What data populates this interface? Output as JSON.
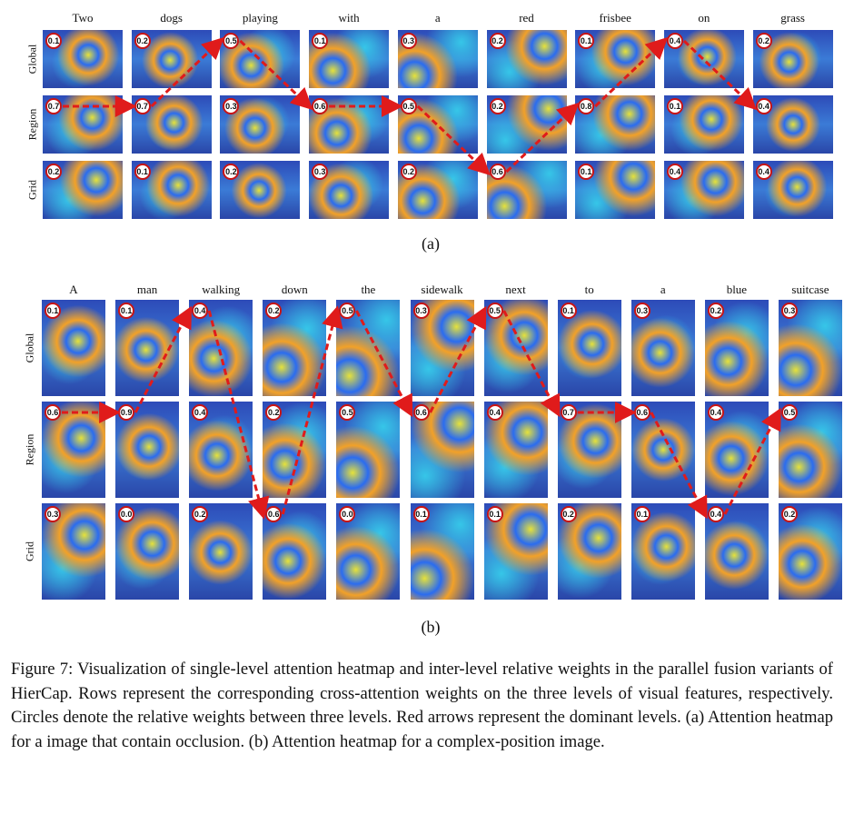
{
  "panel_a": {
    "label": "(a)",
    "words": [
      "Two",
      "dogs",
      "playing",
      "with",
      "a",
      "red",
      "frisbee",
      "on",
      "grass"
    ],
    "rows": [
      "Global",
      "Region",
      "Grid"
    ],
    "weights": [
      [
        "0.1",
        "0.2",
        "0.5",
        "0.1",
        "0.3",
        "0.2",
        "0.1",
        "0.4",
        "0.2"
      ],
      [
        "0.7",
        "0.7",
        "0.3",
        "0.6",
        "0.5",
        "0.2",
        "0.8",
        "0.1",
        "0.4"
      ],
      [
        "0.2",
        "0.1",
        "0.2",
        "0.3",
        "0.2",
        "0.6",
        "0.1",
        "0.4",
        "0.4"
      ]
    ],
    "dominant_path": [
      1,
      1,
      0,
      1,
      1,
      2,
      1,
      0,
      1
    ]
  },
  "panel_b": {
    "label": "(b)",
    "words": [
      "A",
      "man",
      "walking",
      "down",
      "the",
      "sidewalk",
      "next",
      "to",
      "a",
      "blue",
      "suitcase"
    ],
    "rows": [
      "Global",
      "Region",
      "Grid"
    ],
    "weights": [
      [
        "0.1",
        "0.1",
        "0.4",
        "0.2",
        "0.5",
        "0.3",
        "0.5",
        "0.1",
        "0.3",
        "0.2",
        "0.3"
      ],
      [
        "0.6",
        "0.9",
        "0.4",
        "0.2",
        "0.5",
        "0.6",
        "0.4",
        "0.7",
        "0.6",
        "0.4",
        "0.5"
      ],
      [
        "0.3",
        "0.0",
        "0.2",
        "0.6",
        "0.0",
        "0.1",
        "0.1",
        "0.2",
        "0.1",
        "0.4",
        "0.2"
      ]
    ],
    "dominant_path": [
      1,
      1,
      0,
      2,
      0,
      1,
      0,
      1,
      1,
      2,
      1
    ]
  },
  "caption": "Figure 7: Visualization of single-level attention heatmap and inter-level relative weights in the parallel fusion variants of HierCap. Rows represent the corresponding cross-attention weights on the three levels of visual features, respectively. Circles denote the relative weights between three levels. Red arrows represent the dominant levels. (a) Attention heatmap for a image that contain occlusion. (b) Attention heatmap for a complex-position image.",
  "colors": {
    "arrow": "#e01b1b",
    "badge_border": "#c81414"
  }
}
